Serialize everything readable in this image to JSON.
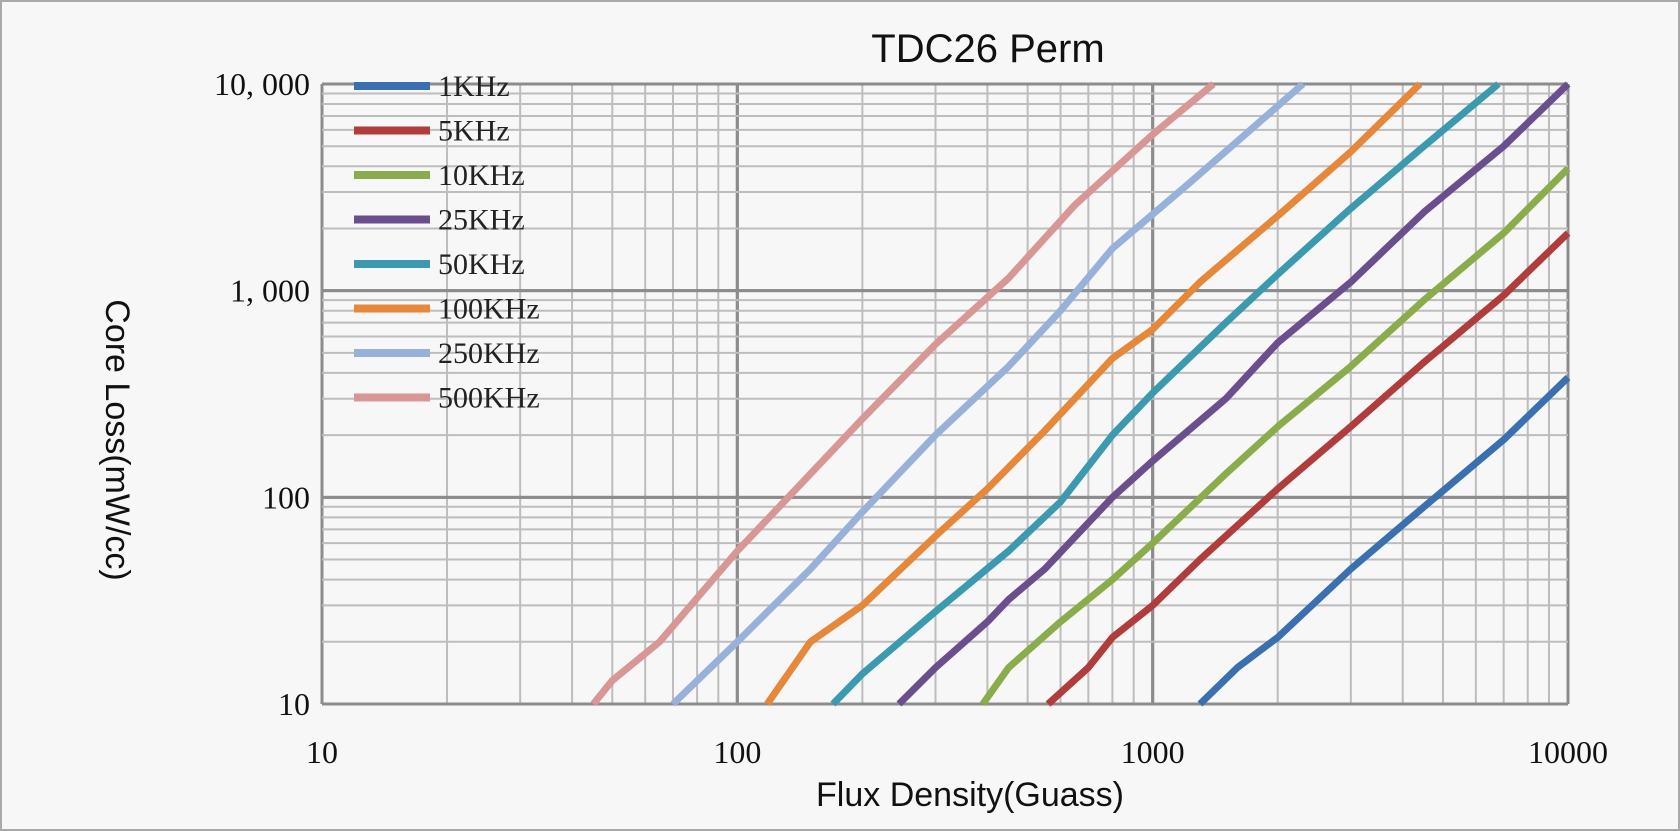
{
  "chart_data": {
    "type": "line",
    "title": "TDC26 Perm",
    "xlabel": "Flux Density(Guass)",
    "ylabel": "Core Loss(mW/cc)",
    "xscale": "log",
    "yscale": "log",
    "xlim": [
      10,
      10000
    ],
    "ylim": [
      10,
      10000
    ],
    "x_ticks": [
      {
        "value": 10,
        "label": "10"
      },
      {
        "value": 100,
        "label": "100"
      },
      {
        "value": 1000,
        "label": "1000"
      },
      {
        "value": 10000,
        "label": "10000"
      }
    ],
    "y_ticks": [
      {
        "value": 10,
        "label": "10"
      },
      {
        "value": 100,
        "label": "100"
      },
      {
        "value": 1000,
        "label": "1, 000"
      },
      {
        "value": 10000,
        "label": "10, 000"
      }
    ],
    "grid": true,
    "legend_position": "top-left",
    "series": [
      {
        "name": "1KHz",
        "color": "#3a6fb0",
        "points": [
          [
            1300,
            10
          ],
          [
            1600,
            15
          ],
          [
            2000,
            21
          ],
          [
            3000,
            45
          ],
          [
            4500,
            90
          ],
          [
            7000,
            190
          ],
          [
            10000,
            380
          ]
        ]
      },
      {
        "name": "5KHz",
        "color": "#b03d3b",
        "points": [
          [
            560,
            10
          ],
          [
            700,
            15
          ],
          [
            800,
            21
          ],
          [
            1000,
            30
          ],
          [
            1300,
            50
          ],
          [
            2000,
            110
          ],
          [
            3000,
            220
          ],
          [
            4500,
            450
          ],
          [
            7000,
            950
          ],
          [
            10000,
            1900
          ]
        ]
      },
      {
        "name": "10KHz",
        "color": "#8aad4b",
        "points": [
          [
            390,
            10
          ],
          [
            450,
            15
          ],
          [
            600,
            25
          ],
          [
            800,
            40
          ],
          [
            1000,
            60
          ],
          [
            1500,
            130
          ],
          [
            2000,
            220
          ],
          [
            3000,
            430
          ],
          [
            4500,
            900
          ],
          [
            7000,
            1900
          ],
          [
            10000,
            3900
          ]
        ]
      },
      {
        "name": "25KHz",
        "color": "#6a4e8d",
        "points": [
          [
            245,
            10
          ],
          [
            300,
            15
          ],
          [
            400,
            25
          ],
          [
            450,
            32
          ],
          [
            550,
            45
          ],
          [
            800,
            100
          ],
          [
            1000,
            150
          ],
          [
            1500,
            300
          ],
          [
            2000,
            560
          ],
          [
            3000,
            1100
          ],
          [
            4500,
            2400
          ],
          [
            7000,
            5000
          ],
          [
            10000,
            10000
          ]
        ]
      },
      {
        "name": "50KHz",
        "color": "#3b99b0",
        "points": [
          [
            170,
            10
          ],
          [
            200,
            14
          ],
          [
            300,
            28
          ],
          [
            450,
            55
          ],
          [
            600,
            95
          ],
          [
            800,
            200
          ],
          [
            1000,
            320
          ],
          [
            1500,
            700
          ],
          [
            2000,
            1200
          ],
          [
            3000,
            2500
          ],
          [
            4500,
            5000
          ],
          [
            6800,
            10000
          ]
        ]
      },
      {
        "name": "100KHz",
        "color": "#e6873a",
        "points": [
          [
            118,
            10
          ],
          [
            150,
            20
          ],
          [
            200,
            30
          ],
          [
            300,
            65
          ],
          [
            400,
            110
          ],
          [
            550,
            210
          ],
          [
            800,
            470
          ],
          [
            1000,
            650
          ],
          [
            1300,
            1100
          ],
          [
            2000,
            2300
          ],
          [
            3000,
            4700
          ],
          [
            4400,
            10000
          ]
        ]
      },
      {
        "name": "250KHz",
        "color": "#98b1da",
        "points": [
          [
            70,
            10
          ],
          [
            100,
            20
          ],
          [
            150,
            45
          ],
          [
            200,
            85
          ],
          [
            300,
            200
          ],
          [
            450,
            430
          ],
          [
            600,
            800
          ],
          [
            800,
            1600
          ],
          [
            1200,
            3200
          ],
          [
            1800,
            6500
          ],
          [
            2300,
            10000
          ]
        ]
      },
      {
        "name": "500KHz",
        "color": "#d89694",
        "points": [
          [
            45,
            10
          ],
          [
            50,
            13
          ],
          [
            65,
            20
          ],
          [
            100,
            55
          ],
          [
            150,
            130
          ],
          [
            200,
            240
          ],
          [
            300,
            550
          ],
          [
            450,
            1150
          ],
          [
            650,
            2600
          ],
          [
            1000,
            5700
          ],
          [
            1400,
            10000
          ]
        ]
      }
    ]
  }
}
